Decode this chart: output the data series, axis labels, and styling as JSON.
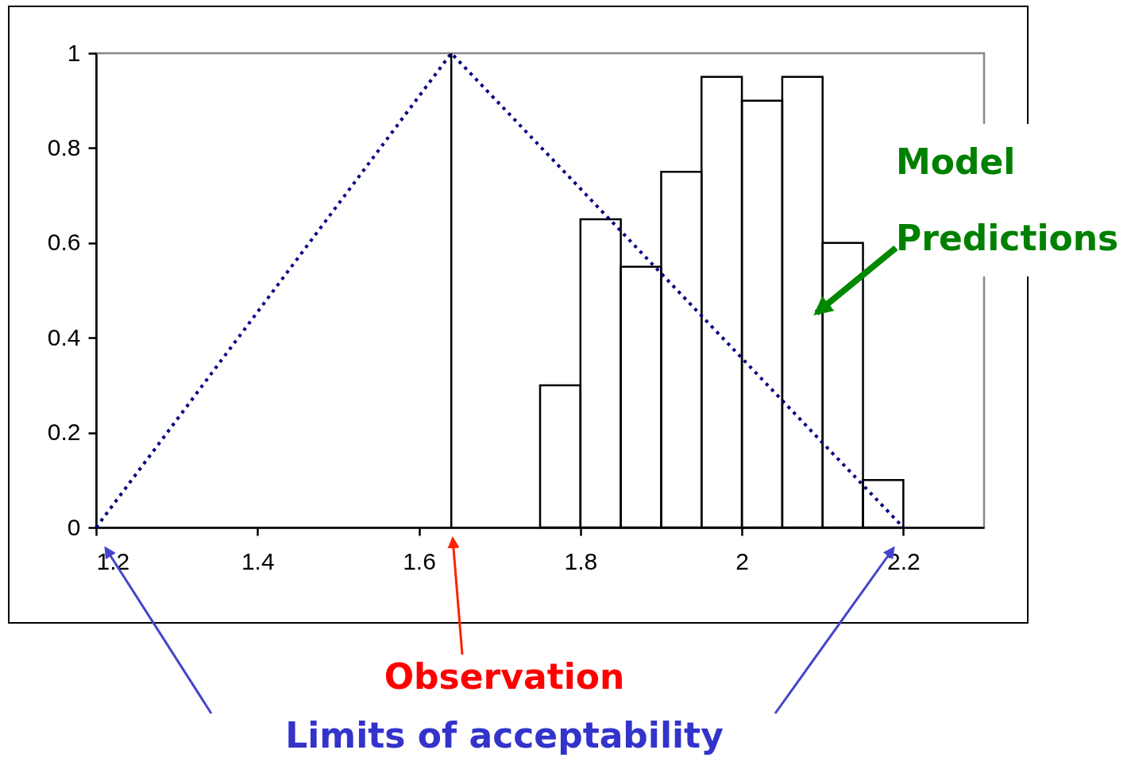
{
  "chart_data": {
    "type": "histogram",
    "series": [
      {
        "color": "#000000",
        "bins": [
          1.75,
          1.8,
          1.85,
          1.9,
          1.95,
          2.0,
          2.05,
          2.1,
          2.15,
          2.2
        ],
        "values": [
          0.3,
          0.65,
          0.55,
          0.75,
          0.95,
          0.9,
          0.95,
          0.6,
          0.1
        ]
      },
      {
        "type": "line",
        "color": "#000080",
        "line_style": "dotted",
        "x": [
          1.2,
          1.64,
          2.2
        ],
        "values": [
          0,
          1,
          0
        ]
      }
    ],
    "xlim": [
      1.2,
      2.3
    ],
    "xticks": [
      1.2,
      1.4,
      1.6,
      1.8,
      2,
      2.2
    ],
    "ylim": [
      0,
      1
    ],
    "yticks": [
      0,
      0.2,
      0.4,
      0.6,
      0.8,
      1
    ],
    "ref_lines": [
      {
        "axis": "x",
        "value": 1.64,
        "color": "#000000"
      }
    ],
    "annotations": [
      "Model Predictions",
      "Observation",
      "Limits of acceptability"
    ]
  }
}
